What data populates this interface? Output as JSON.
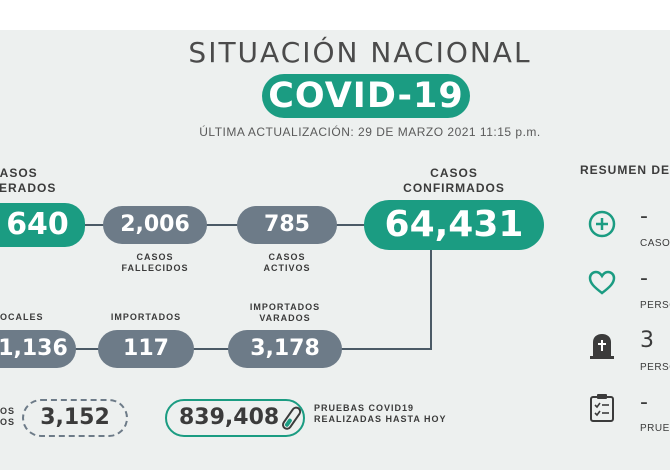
{
  "header": {
    "title": "SITUACIÓN NACIONAL",
    "badge": "COVID-19",
    "update": "ÚLTIMA ACTUALIZACIÓN: 29 DE MARZO 2021 11:15 p.m."
  },
  "row1": {
    "recovered": {
      "label_line1": "CASOS",
      "label_line2": "PERADOS",
      "value": "640"
    },
    "deceased": {
      "value": "2,006",
      "label_line1": "CASOS",
      "label_line2": "FALLECIDOS"
    },
    "active": {
      "value": "785",
      "label_line1": "CASOS",
      "label_line2": "ACTIVOS"
    },
    "confirmed": {
      "label_line1": "CASOS",
      "label_line2": "CONFIRMADOS",
      "value": "64,431"
    }
  },
  "row2": {
    "local": {
      "label": "OCALES",
      "value": "1,136"
    },
    "imported": {
      "label": "IMPORTADOS",
      "value": "117"
    },
    "stranded": {
      "label_line1": "IMPORTADOS",
      "label_line2": "VARADOS",
      "value": "3,178"
    }
  },
  "row3": {
    "dashed": {
      "label_line1": "OS",
      "label_line2": "OS",
      "value": "3,152"
    },
    "tests": {
      "value": "839,408",
      "label_line1": "PRUEBAS COVID19",
      "label_line2": "REALIZADAS HASTA HOY"
    }
  },
  "summary": {
    "title": "RESUMEN DE",
    "items": [
      {
        "icon": "plus-circle-icon",
        "value": "-",
        "label": "CASO"
      },
      {
        "icon": "heart-icon",
        "value": "-",
        "label": "PERSO"
      },
      {
        "icon": "tombstone-icon",
        "value": "3",
        "label": "PERSO"
      },
      {
        "icon": "clipboard-icon",
        "value": "-",
        "label": "PRUEB"
      }
    ]
  },
  "colors": {
    "accent": "#1b9c82",
    "pill_gray": "#6d7b88",
    "line": "#4b5a66",
    "background": "#edf0ef"
  }
}
